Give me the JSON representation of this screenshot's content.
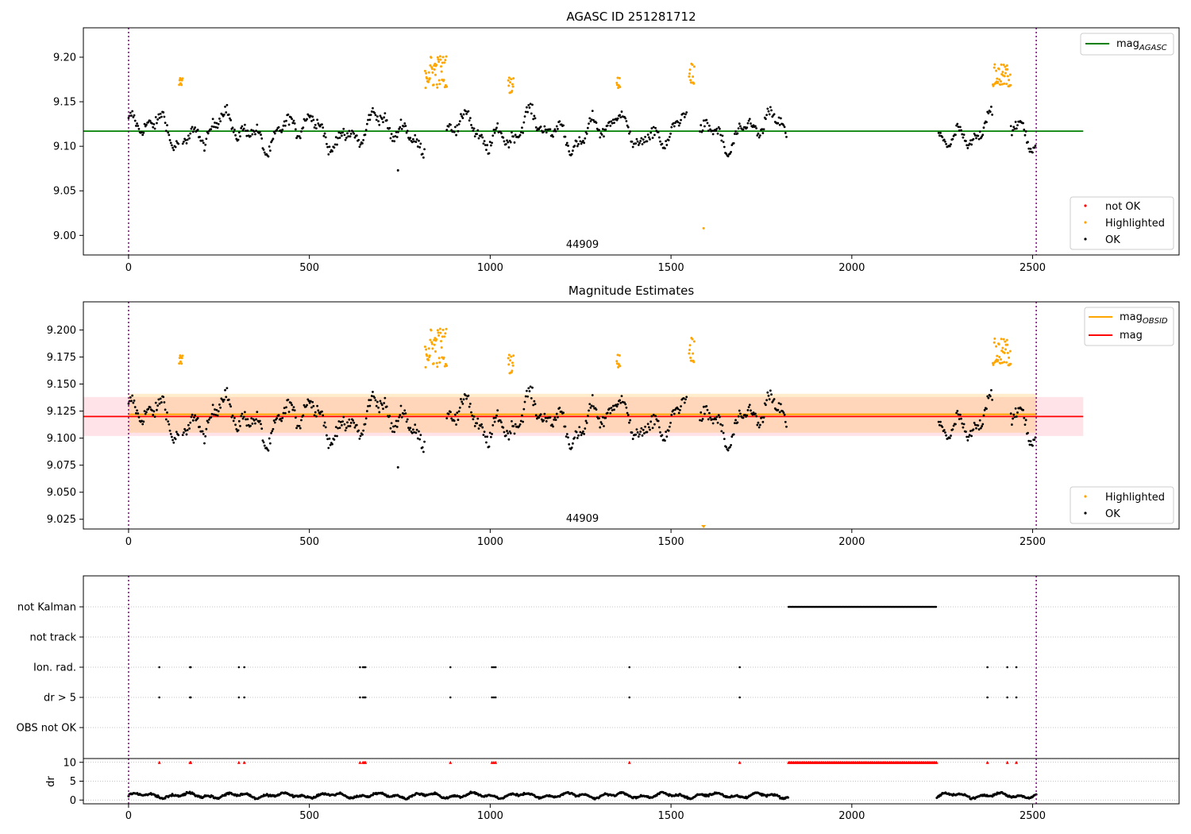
{
  "chart_data": [
    {
      "type": "scatter",
      "title": "AGASC ID 251281712",
      "xlim": [
        -125,
        2905
      ],
      "ylim": [
        8.978,
        9.233
      ],
      "x_ticks": [
        0,
        500,
        1000,
        1500,
        2000,
        2500
      ],
      "y_ticks": [
        9.0,
        9.05,
        9.1,
        9.15,
        9.2
      ],
      "y_tick_labels": [
        "9.00",
        "9.05",
        "9.10",
        "9.15",
        "9.20"
      ],
      "grid": false,
      "obsid_label": "44909",
      "obsid_label_x": 1255,
      "vlines_dotted": [
        0,
        2510
      ],
      "reference_line": {
        "name": "mag",
        "subscript": "AGASC",
        "value": 9.117,
        "x_range": [
          -125,
          2640
        ],
        "color": "#008000"
      },
      "legend_lines_position": "upper-right",
      "legend_points_position": "lower-right",
      "legend_points": [
        {
          "label": "not OK",
          "color": "#ff0000"
        },
        {
          "label": "Highlighted",
          "color": "#ffa500"
        },
        {
          "label": "OK",
          "color": "#000000"
        }
      ],
      "ok_segments": [
        [
          0,
          140
        ],
        [
          150,
          820
        ],
        [
          880,
          1545
        ],
        [
          1580,
          1820
        ],
        [
          2240,
          2390
        ],
        [
          2440,
          2510
        ]
      ],
      "highlighted": [
        {
          "x_range": [
            140,
            150
          ],
          "y_range": [
            9.165,
            9.177
          ]
        },
        {
          "x_range": [
            820,
            880
          ],
          "y_range": [
            9.165,
            9.203
          ]
        },
        {
          "x_range": [
            1050,
            1065
          ],
          "y_range": [
            9.16,
            9.178
          ]
        },
        {
          "x_range": [
            1350,
            1360
          ],
          "y_range": [
            9.165,
            9.178
          ]
        },
        {
          "x_range": [
            1550,
            1565
          ],
          "y_range": [
            9.17,
            9.195
          ]
        },
        {
          "x_range": [
            2390,
            2440
          ],
          "y_range": [
            9.165,
            9.192
          ]
        }
      ],
      "outliers": [
        {
          "x": 745,
          "y": 9.073
        },
        {
          "x": 1590,
          "y": 9.008
        }
      ]
    },
    {
      "type": "scatter",
      "title": "Magnitude Estimates",
      "xlim": [
        -125,
        2905
      ],
      "ylim": [
        9.016,
        9.226
      ],
      "x_ticks": [
        0,
        500,
        1000,
        1500,
        2000,
        2500
      ],
      "y_ticks": [
        9.025,
        9.05,
        9.075,
        9.1,
        9.125,
        9.15,
        9.175,
        9.2
      ],
      "y_tick_labels": [
        "9.025",
        "9.050",
        "9.075",
        "9.100",
        "9.125",
        "9.150",
        "9.175",
        "9.200"
      ],
      "grid": false,
      "obsid_label": "44909",
      "obsid_label_x": 1255,
      "vlines_dotted": [
        0,
        2510
      ],
      "mag_line": {
        "name": "mag",
        "value": 9.12,
        "band": [
          9.102,
          9.138
        ],
        "x_range": [
          -125,
          2640
        ],
        "color": "#ff0000"
      },
      "mag_obsid_line": {
        "name": "mag",
        "subscript": "OBSID",
        "value": 9.122,
        "band": [
          9.105,
          9.141
        ],
        "x_range": [
          0,
          2510
        ],
        "color": "#ffa500"
      },
      "legend_lines_position": "upper-right",
      "legend_points_position": "lower-right",
      "legend_points": [
        {
          "label": "Highlighted",
          "color": "#ffa500"
        },
        {
          "label": "OK",
          "color": "#000000"
        }
      ],
      "lower_marker": {
        "x": 1590,
        "label": "below axis"
      }
    },
    {
      "type": "scatter",
      "flag_labels": [
        "not Kalman",
        "not track",
        "Ion. rad.",
        "dr > 5",
        "OBS not OK"
      ],
      "xlim": [
        -125,
        2905
      ],
      "x_ticks": [
        0,
        500,
        1000,
        1500,
        2000,
        2500
      ],
      "not_kalman_range": [
        1825,
        2235
      ],
      "ion_rad_x": [
        85,
        170,
        172,
        305,
        320,
        640,
        648,
        652,
        655,
        890,
        1005,
        1010,
        1015,
        1385,
        1690,
        2375,
        2430,
        2455
      ],
      "dr_gt5_x": [
        85,
        170,
        172,
        305,
        320,
        640,
        648,
        652,
        655,
        890,
        1005,
        1010,
        1015,
        1385,
        1690,
        2375,
        2430,
        2455
      ],
      "dr_subplot": {
        "ylabel": "dr",
        "y_ticks": [
          0,
          5,
          10
        ],
        "ylim": [
          -1,
          11
        ],
        "clipped_value": 10,
        "gap_range": [
          1825,
          2235
        ],
        "segments": [
          [
            0,
            1825
          ],
          [
            2235,
            2510
          ]
        ]
      }
    }
  ]
}
